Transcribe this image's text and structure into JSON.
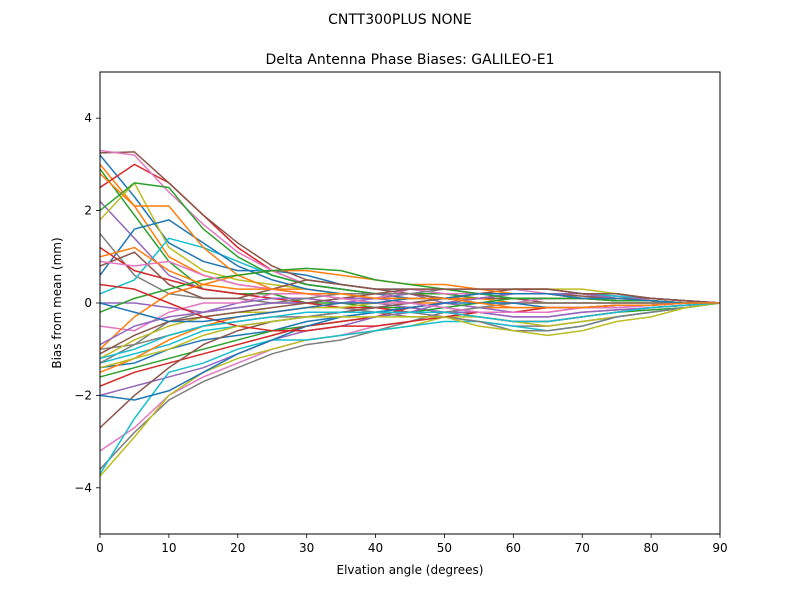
{
  "figure": {
    "suptitle": "CNTT300PLUS     NONE"
  },
  "chart_data": {
    "type": "line",
    "title": "Delta Antenna Phase Biases: GALILEO-E1",
    "xlabel": "Elvation angle (degrees)",
    "ylabel": "Bias from mean (mm)",
    "xlim": [
      0,
      90
    ],
    "ylim": [
      -5,
      5
    ],
    "xticks": [
      0,
      10,
      20,
      30,
      40,
      50,
      60,
      70,
      80,
      90
    ],
    "xtick_labels": [
      "0",
      "10",
      "20",
      "30",
      "40",
      "50",
      "60",
      "70",
      "80",
      "90"
    ],
    "yticks": [
      -4,
      -2,
      0,
      2,
      4
    ],
    "ytick_labels": [
      "−4",
      "−2",
      "0",
      "2",
      "4"
    ],
    "grid": false,
    "legend": "none",
    "x": [
      0,
      5,
      10,
      15,
      20,
      25,
      30,
      35,
      40,
      45,
      50,
      55,
      60,
      65,
      70,
      75,
      80,
      85,
      90
    ],
    "color_cycle": [
      "#1f77b4",
      "#ff7f0e",
      "#2ca02c",
      "#d62728",
      "#9467bd",
      "#8c564b",
      "#e377c2",
      "#7f7f7f",
      "#bcbd22",
      "#17becf"
    ],
    "series": [
      {
        "values": [
          3.2,
          2.3,
          1.3,
          0.9,
          0.7,
          0.7,
          0.6,
          0.4,
          0.3,
          0.3,
          0.2,
          0.2,
          0.2,
          0.2,
          0.2,
          0.15,
          0.1,
          0.05,
          0.0
        ]
      },
      {
        "values": [
          3.0,
          2.1,
          1.0,
          0.6,
          0.4,
          0.3,
          0.3,
          0.2,
          0.1,
          0.1,
          0.1,
          0.1,
          0.1,
          0.1,
          0.1,
          0.05,
          0.05,
          0.0,
          0.0
        ]
      },
      {
        "values": [
          2.9,
          1.9,
          0.9,
          0.3,
          0.2,
          0.2,
          0.0,
          0.0,
          -0.1,
          -0.1,
          -0.2,
          -0.3,
          -0.4,
          -0.4,
          -0.3,
          -0.2,
          -0.15,
          -0.1,
          0.0
        ]
      },
      {
        "values": [
          2.5,
          3.0,
          2.6,
          1.9,
          1.2,
          0.7,
          0.4,
          0.3,
          0.2,
          0.2,
          0.1,
          0.1,
          0.1,
          0.1,
          0.1,
          0.05,
          0.05,
          0.0,
          0.0
        ]
      },
      {
        "values": [
          2.2,
          1.4,
          0.6,
          0.3,
          0.2,
          0.1,
          0.1,
          0.0,
          0.0,
          -0.1,
          -0.2,
          -0.2,
          -0.3,
          -0.3,
          -0.2,
          -0.15,
          -0.1,
          -0.05,
          0.0
        ]
      },
      {
        "values": [
          3.25,
          3.27,
          2.6,
          1.9,
          1.3,
          0.8,
          0.5,
          0.4,
          0.3,
          0.3,
          0.3,
          0.2,
          0.2,
          0.2,
          0.15,
          0.1,
          0.1,
          0.05,
          0.0
        ]
      },
      {
        "values": [
          3.3,
          3.2,
          2.4,
          1.7,
          1.1,
          0.7,
          0.4,
          0.3,
          0.2,
          0.2,
          0.2,
          0.1,
          0.1,
          0.1,
          0.1,
          0.05,
          0.05,
          0.0,
          0.0
        ]
      },
      {
        "values": [
          1.5,
          0.6,
          0.2,
          0.1,
          0.1,
          0.0,
          0.0,
          -0.1,
          -0.2,
          -0.2,
          -0.3,
          -0.4,
          -0.5,
          -0.5,
          -0.4,
          -0.3,
          -0.2,
          -0.1,
          0.0
        ]
      },
      {
        "values": [
          1.8,
          2.6,
          1.2,
          0.7,
          0.5,
          0.4,
          0.3,
          0.2,
          0.2,
          0.1,
          0.1,
          0.1,
          0.1,
          0.1,
          0.1,
          0.05,
          0.05,
          0.0,
          0.0
        ]
      },
      {
        "values": [
          0.2,
          0.5,
          1.4,
          1.2,
          0.9,
          0.6,
          0.4,
          0.3,
          0.2,
          0.2,
          0.1,
          0.1,
          0.1,
          0.1,
          0.1,
          0.05,
          0.05,
          0.0,
          0.0
        ]
      },
      {
        "values": [
          0.6,
          1.6,
          1.8,
          1.3,
          0.8,
          0.5,
          0.3,
          0.2,
          0.2,
          0.1,
          0.1,
          0.0,
          0.0,
          0.0,
          0.0,
          0.0,
          0.0,
          0.0,
          0.0
        ]
      },
      {
        "values": [
          2.8,
          2.1,
          2.1,
          1.2,
          0.6,
          0.3,
          0.2,
          0.1,
          0.0,
          0.0,
          0.0,
          -0.1,
          -0.1,
          -0.1,
          -0.1,
          -0.05,
          -0.05,
          0.0,
          0.0
        ]
      },
      {
        "values": [
          2.0,
          2.6,
          2.5,
          1.6,
          1.0,
          0.6,
          0.4,
          0.3,
          0.2,
          0.2,
          0.2,
          0.1,
          0.1,
          0.1,
          0.1,
          0.05,
          0.05,
          0.0,
          0.0
        ]
      },
      {
        "values": [
          1.2,
          0.7,
          0.5,
          0.3,
          0.2,
          0.1,
          0.0,
          -0.1,
          -0.1,
          -0.2,
          -0.2,
          -0.3,
          -0.4,
          -0.4,
          -0.3,
          -0.2,
          -0.1,
          -0.05,
          0.0
        ]
      },
      {
        "values": [
          0.0,
          0.0,
          -0.1,
          -0.2,
          0.0,
          0.1,
          0.1,
          0.0,
          0.1,
          0.2,
          0.0,
          -0.1,
          -0.2,
          -0.2,
          -0.1,
          -0.1,
          -0.05,
          0.0,
          0.0
        ]
      },
      {
        "values": [
          0.8,
          1.1,
          0.4,
          0.1,
          0.1,
          0.3,
          0.5,
          0.4,
          0.3,
          0.2,
          0.1,
          0.1,
          0.1,
          0.0,
          0.0,
          0.0,
          0.0,
          0.0,
          0.0
        ]
      },
      {
        "values": [
          -0.5,
          -0.6,
          -0.2,
          0.0,
          0.0,
          0.2,
          0.2,
          0.1,
          0.1,
          0.3,
          0.2,
          0.2,
          0.3,
          0.2,
          0.2,
          0.1,
          0.1,
          0.05,
          0.0
        ]
      },
      {
        "values": [
          -1.0,
          -0.9,
          -0.4,
          -0.2,
          -0.1,
          0.0,
          0.1,
          0.2,
          0.2,
          0.2,
          0.3,
          0.3,
          0.3,
          0.3,
          0.2,
          0.2,
          0.1,
          0.05,
          0.0
        ]
      },
      {
        "values": [
          -1.2,
          -0.8,
          -0.5,
          -0.3,
          -0.2,
          -0.2,
          -0.1,
          -0.1,
          0.0,
          0.1,
          0.1,
          0.2,
          0.3,
          0.3,
          0.3,
          0.2,
          0.1,
          0.05,
          0.0
        ]
      },
      {
        "values": [
          -1.3,
          -1.1,
          -0.9,
          -0.6,
          -0.5,
          -0.4,
          -0.3,
          -0.2,
          -0.1,
          0.0,
          0.1,
          0.2,
          0.2,
          0.2,
          0.2,
          0.15,
          0.1,
          0.05,
          0.0
        ]
      },
      {
        "values": [
          -1.4,
          -1.3,
          -1.0,
          -0.8,
          -0.7,
          -0.6,
          -0.4,
          -0.3,
          -0.2,
          -0.1,
          0.0,
          0.1,
          0.2,
          0.2,
          0.1,
          0.1,
          0.05,
          0.0,
          0.0
        ]
      },
      {
        "values": [
          -1.5,
          -1.2,
          -0.8,
          -0.5,
          -0.3,
          -0.2,
          -0.1,
          0.0,
          0.0,
          0.1,
          0.1,
          0.1,
          0.0,
          0.0,
          0.0,
          0.0,
          0.0,
          0.0,
          0.0
        ]
      },
      {
        "values": [
          -1.6,
          -1.4,
          -1.2,
          -1.0,
          -0.8,
          -0.6,
          -0.5,
          -0.4,
          -0.3,
          -0.2,
          -0.1,
          0.0,
          0.1,
          0.1,
          0.1,
          0.05,
          0.05,
          0.0,
          0.0
        ]
      },
      {
        "values": [
          -1.8,
          -1.5,
          -1.3,
          -1.1,
          -0.9,
          -0.7,
          -0.5,
          -0.4,
          -0.3,
          -0.1,
          0.0,
          0.1,
          0.2,
          0.2,
          0.2,
          0.1,
          0.1,
          0.05,
          0.0
        ]
      },
      {
        "values": [
          -2.0,
          -1.8,
          -1.6,
          -1.4,
          -1.1,
          -0.8,
          -0.6,
          -0.5,
          -0.3,
          -0.2,
          0.0,
          0.1,
          0.2,
          0.2,
          0.2,
          0.1,
          0.1,
          0.05,
          0.0
        ]
      },
      {
        "values": [
          -2.7,
          -2.0,
          -1.4,
          -0.9,
          -0.6,
          -0.4,
          -0.3,
          -0.2,
          -0.1,
          0.0,
          0.1,
          0.2,
          0.3,
          0.3,
          0.2,
          0.2,
          0.1,
          0.05,
          0.0
        ]
      },
      {
        "values": [
          -3.2,
          -2.7,
          -2.0,
          -1.6,
          -1.3,
          -1.0,
          -0.8,
          -0.7,
          -0.5,
          -0.4,
          -0.2,
          -0.1,
          0.0,
          0.1,
          0.1,
          0.1,
          0.05,
          0.0,
          0.0
        ]
      },
      {
        "values": [
          -3.6,
          -2.8,
          -2.1,
          -1.7,
          -1.4,
          -1.1,
          -0.9,
          -0.8,
          -0.6,
          -0.4,
          -0.2,
          -0.1,
          0.0,
          0.0,
          0.0,
          0.0,
          0.0,
          0.0,
          0.0
        ]
      },
      {
        "values": [
          -3.75,
          -2.9,
          -2.0,
          -1.5,
          -1.2,
          -1.0,
          -0.8,
          -0.7,
          -0.6,
          -0.5,
          -0.3,
          -0.3,
          -0.4,
          -0.5,
          -0.4,
          -0.3,
          -0.2,
          -0.1,
          0.0
        ]
      },
      {
        "values": [
          -3.7,
          -2.5,
          -1.5,
          -1.3,
          -1.0,
          -0.8,
          -0.8,
          -0.7,
          -0.6,
          -0.5,
          -0.4,
          -0.4,
          -0.5,
          -0.6,
          -0.5,
          -0.3,
          -0.2,
          -0.1,
          0.0
        ]
      },
      {
        "values": [
          -2.0,
          -2.1,
          -1.9,
          -1.5,
          -1.1,
          -0.8,
          -0.5,
          -0.3,
          -0.2,
          -0.1,
          0.0,
          0.0,
          0.0,
          -0.1,
          -0.1,
          -0.05,
          -0.05,
          0.0,
          0.0
        ]
      },
      {
        "values": [
          -1.0,
          -0.3,
          0.2,
          0.4,
          0.6,
          0.7,
          0.7,
          0.6,
          0.5,
          0.4,
          0.4,
          0.3,
          0.2,
          0.2,
          0.1,
          0.1,
          0.05,
          0.0,
          0.0
        ]
      },
      {
        "values": [
          -0.2,
          0.1,
          0.3,
          0.5,
          0.6,
          0.7,
          0.75,
          0.7,
          0.5,
          0.4,
          0.3,
          0.2,
          0.1,
          0.1,
          0.1,
          0.05,
          0.05,
          0.0,
          0.0
        ]
      },
      {
        "values": [
          0.4,
          0.3,
          0.0,
          -0.3,
          -0.5,
          -0.6,
          -0.6,
          -0.5,
          -0.5,
          -0.4,
          -0.3,
          -0.2,
          -0.2,
          -0.1,
          -0.1,
          -0.05,
          -0.05,
          0.0,
          0.0
        ]
      },
      {
        "values": [
          -0.9,
          -0.5,
          -0.3,
          -0.2,
          -0.1,
          0.0,
          0.0,
          0.1,
          0.1,
          0.0,
          -0.1,
          -0.2,
          -0.3,
          -0.3,
          -0.2,
          -0.15,
          -0.1,
          -0.05,
          0.0
        ]
      },
      {
        "values": [
          -1.1,
          -0.7,
          -0.4,
          -0.3,
          -0.2,
          -0.1,
          0.0,
          0.1,
          0.2,
          0.3,
          0.3,
          0.3,
          0.3,
          0.3,
          0.2,
          0.2,
          0.1,
          0.05,
          0.0
        ]
      },
      {
        "values": [
          0.9,
          0.8,
          0.9,
          0.6,
          0.4,
          0.3,
          0.2,
          0.1,
          0.0,
          0.0,
          -0.1,
          -0.2,
          -0.2,
          -0.2,
          -0.1,
          -0.1,
          -0.05,
          0.0,
          0.0
        ]
      },
      {
        "values": [
          -1.3,
          -0.9,
          -0.7,
          -0.5,
          -0.4,
          -0.3,
          -0.3,
          -0.2,
          -0.2,
          -0.3,
          -0.3,
          -0.4,
          -0.6,
          -0.6,
          -0.5,
          -0.3,
          -0.2,
          -0.1,
          0.0
        ]
      },
      {
        "values": [
          -1.4,
          -1.2,
          -1.0,
          -0.7,
          -0.5,
          -0.4,
          -0.3,
          -0.3,
          -0.3,
          -0.3,
          -0.3,
          -0.5,
          -0.6,
          -0.7,
          -0.6,
          -0.4,
          -0.3,
          -0.1,
          0.0
        ]
      },
      {
        "values": [
          -1.2,
          -1.0,
          -0.7,
          -0.5,
          -0.4,
          -0.3,
          -0.2,
          -0.2,
          -0.2,
          -0.2,
          -0.2,
          -0.3,
          -0.4,
          -0.4,
          -0.3,
          -0.2,
          -0.1,
          -0.05,
          0.0
        ]
      },
      {
        "values": [
          0.0,
          -0.2,
          -0.4,
          -0.4,
          -0.3,
          -0.2,
          -0.1,
          0.0,
          0.0,
          0.1,
          0.1,
          0.2,
          0.2,
          0.2,
          0.1,
          0.1,
          0.05,
          0.0,
          0.0
        ]
      },
      {
        "values": [
          1.0,
          1.2,
          0.7,
          0.4,
          0.3,
          0.3,
          0.2,
          0.2,
          0.1,
          0.1,
          0.1,
          0.0,
          -0.1,
          -0.1,
          -0.1,
          -0.05,
          -0.05,
          0.0,
          0.0
        ]
      }
    ]
  }
}
